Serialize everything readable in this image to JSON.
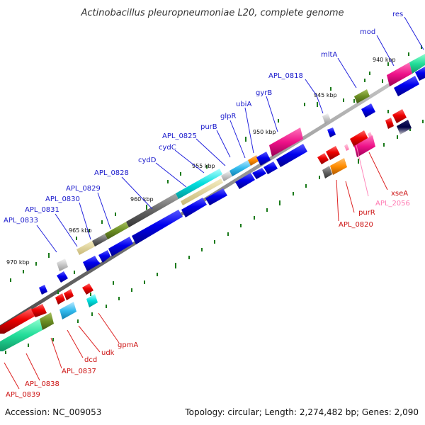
{
  "title": "Actinobacillus pleuropneumoniae L20, complete genome",
  "footer": {
    "accession": "Accession: NC_009053",
    "stats": "Topology: circular; Length: 2,274,482 bp; Genes: 2,090"
  },
  "colors": {
    "forward": "#0000ee",
    "reverse": "#ee0000",
    "reverse_light": "#ff77b0",
    "backbone": "#777777",
    "tick": "#1a7a1a"
  },
  "scale_labels": [
    "970 kbp",
    "965 kbp",
    "960 kbp",
    "955 kbp",
    "950 kbp",
    "945 kbp",
    "940 kbp"
  ],
  "forward_genes": [
    "res",
    "mod",
    "mltA",
    "APL_0818",
    "gyrB",
    "ubiA",
    "glpR",
    "purB",
    "APL_0825",
    "cydC",
    "cydD",
    "APL_0828",
    "APL_0829",
    "APL_0830",
    "APL_0831",
    "APL_0833"
  ],
  "reverse_genes": [
    "xseA",
    "APL_2056",
    "purR",
    "APL_0820",
    "gpmA",
    "udk",
    "dcd",
    "APL_0837",
    "APL_0838",
    "APL_0839"
  ]
}
